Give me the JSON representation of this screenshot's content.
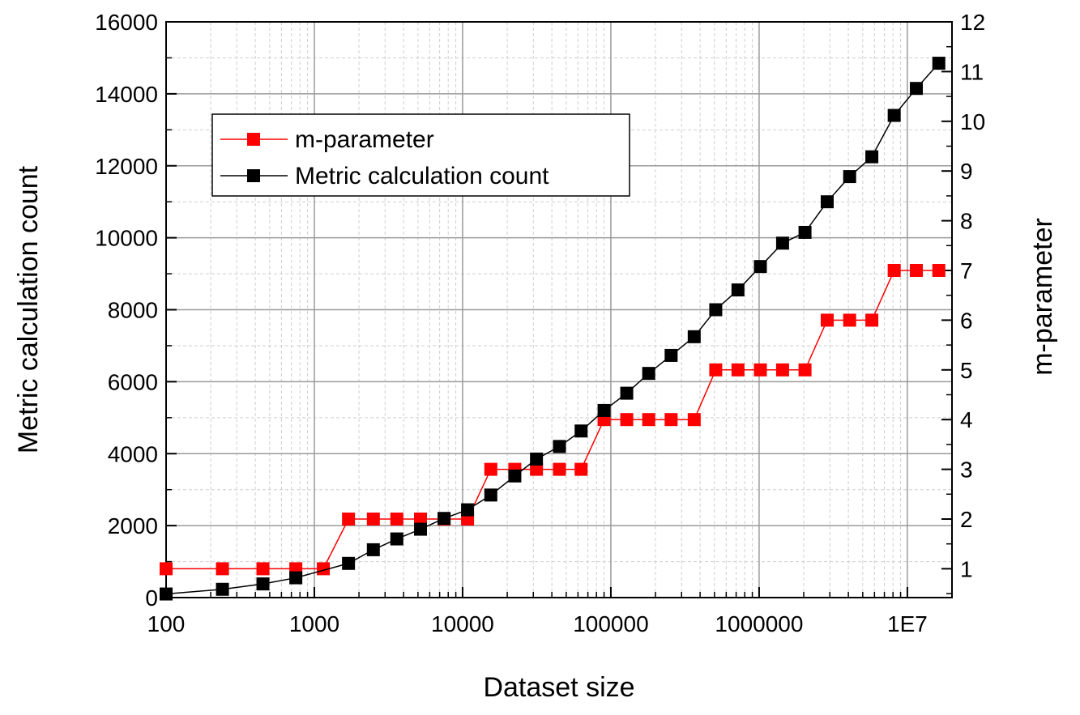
{
  "chart_data": {
    "type": "line",
    "title": "",
    "xlabel": "Dataset size",
    "ylabel": "Metric calculation count",
    "y2label": "m-parameter",
    "xscale": "log",
    "xlim": [
      100,
      20000000
    ],
    "ylim": [
      0,
      16000
    ],
    "y2lim": [
      0.42,
      12
    ],
    "grid": true,
    "legend": "top-left",
    "xticks": [
      100,
      1000,
      10000,
      100000,
      1000000,
      10000000
    ],
    "xtick_labels": [
      "100",
      "1000",
      "10000",
      "100000",
      "1000000",
      "1E7"
    ],
    "yticks": [
      0,
      2000,
      4000,
      6000,
      8000,
      10000,
      12000,
      14000,
      16000
    ],
    "ytick_labels": [
      "0",
      "2000",
      "4000",
      "6000",
      "8000",
      "10000",
      "12000",
      "14000",
      "16000"
    ],
    "y2ticks": [
      1,
      2,
      3,
      4,
      5,
      6,
      7,
      8,
      9,
      10,
      11,
      12
    ],
    "y2tick_labels": [
      "1",
      "2",
      "3",
      "4",
      "5",
      "6",
      "7",
      "8",
      "9",
      "10",
      "11",
      "12"
    ],
    "series": [
      {
        "name": "m-parameter",
        "axis": "right",
        "color": "#ff0000",
        "marker": "square",
        "x": [
          100,
          240,
          450,
          750,
          1150,
          1700,
          2500,
          3600,
          5200,
          7500,
          10800,
          15500,
          22500,
          31500,
          45000,
          63000,
          90000,
          128000,
          180000,
          255000,
          365000,
          510000,
          720000,
          1020000,
          1440000,
          2040000,
          2880000,
          4080000,
          5760000,
          8150000,
          11500000,
          16300000
        ],
        "values": [
          1,
          1,
          1,
          1,
          1,
          2,
          2,
          2,
          2,
          2,
          2,
          3,
          3,
          3,
          3,
          3,
          4,
          4,
          4,
          4,
          4,
          5,
          5,
          5,
          5,
          5,
          6,
          6,
          6,
          7,
          7,
          7
        ]
      },
      {
        "name": "Metric calculation count",
        "axis": "left",
        "color": "#000000",
        "marker": "square",
        "x": [
          100,
          240,
          450,
          750,
          1700,
          2500,
          3600,
          5200,
          7500,
          10800,
          15500,
          22500,
          31500,
          45000,
          63000,
          90000,
          128000,
          180000,
          255000,
          365000,
          510000,
          720000,
          1020000,
          1440000,
          2040000,
          2880000,
          4080000,
          5760000,
          8150000,
          11500000,
          16300000
        ],
        "values": [
          100,
          230,
          380,
          550,
          950,
          1330,
          1630,
          1900,
          2200,
          2440,
          2850,
          3380,
          3850,
          4200,
          4630,
          5200,
          5680,
          6230,
          6730,
          7250,
          8000,
          8550,
          9200,
          9850,
          10150,
          11000,
          11700,
          12250,
          13400,
          14150,
          14850
        ]
      }
    ]
  }
}
